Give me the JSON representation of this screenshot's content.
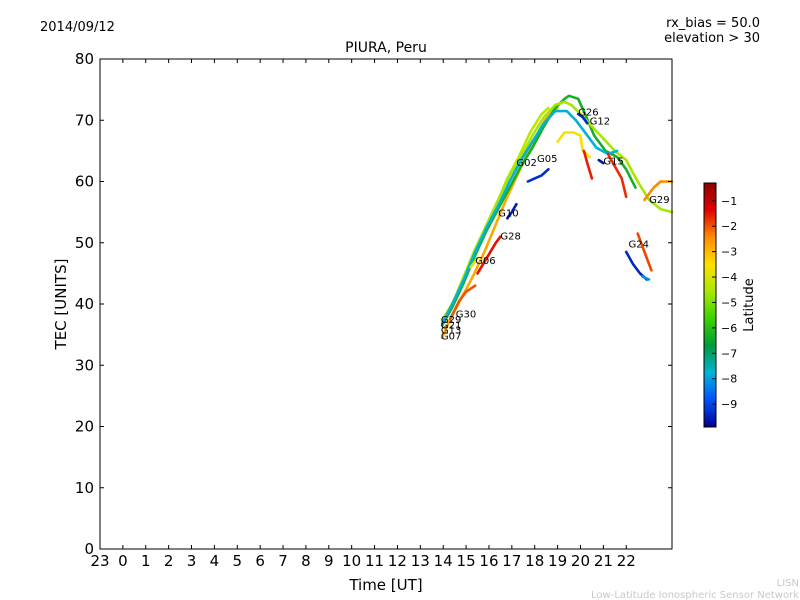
{
  "header": {
    "date": "2014/09/12",
    "rx_bias": "rx_bias = 50.0",
    "elevation": "elevation > 30"
  },
  "footer": {
    "credit_short": "LISN",
    "credit_long": "Low-Latitude Ionospheric Sensor Network"
  },
  "colorbar": {
    "label": "Latitude",
    "ticks": [
      -1,
      -2,
      -3,
      -4,
      -5,
      -6,
      -7,
      -8,
      -9
    ],
    "range": [
      -9.9,
      -0.3
    ],
    "colors": [
      "#00008f",
      "#0050ff",
      "#00b4d8",
      "#009b3a",
      "#3cd200",
      "#a8e800",
      "#ffe000",
      "#ff8c00",
      "#e00000",
      "#8f0000"
    ]
  },
  "chart_data": {
    "type": "line",
    "title": "PIURA, Peru",
    "xlabel": "Time [UT]",
    "ylabel": "TEC [UNITS]",
    "xlim": [
      -1,
      24
    ],
    "ylim": [
      0,
      80
    ],
    "x_ticks": [
      -1,
      0,
      1,
      2,
      3,
      4,
      5,
      6,
      7,
      8,
      9,
      10,
      11,
      12,
      13,
      14,
      15,
      16,
      17,
      18,
      19,
      20,
      21,
      22
    ],
    "x_tick_labels": [
      "23",
      "0",
      "1",
      "2",
      "3",
      "4",
      "5",
      "6",
      "7",
      "8",
      "9",
      "10",
      "11",
      "12",
      "13",
      "14",
      "15",
      "16",
      "17",
      "18",
      "19",
      "20",
      "21",
      "22"
    ],
    "y_ticks": [
      0,
      10,
      20,
      30,
      40,
      50,
      60,
      70,
      80
    ],
    "grid": false,
    "series": [
      {
        "name": "G07",
        "lat": -2.8,
        "label_at": [
          13.9,
          34.2
        ],
        "points": [
          [
            13.95,
            34.5
          ],
          [
            14.3,
            37.5
          ],
          [
            14.8,
            41
          ],
          [
            15.3,
            44.5
          ],
          [
            15.8,
            48.5
          ],
          [
            16.3,
            53
          ],
          [
            16.8,
            57.5
          ],
          [
            17.3,
            61.5
          ],
          [
            17.8,
            65.5
          ],
          [
            18.3,
            69
          ],
          [
            18.7,
            71.5
          ],
          [
            19.0,
            72
          ]
        ]
      },
      {
        "name": "G30",
        "lat": -4.3,
        "label_at": [
          14.55,
          37.8
        ],
        "points": [
          [
            13.95,
            37.3
          ],
          [
            14.3,
            39.5
          ],
          [
            14.8,
            43
          ],
          [
            15.3,
            47
          ],
          [
            15.8,
            51.5
          ],
          [
            16.3,
            56
          ],
          [
            16.8,
            60.5
          ],
          [
            17.3,
            64
          ],
          [
            17.8,
            68
          ],
          [
            18.3,
            71
          ],
          [
            18.6,
            72
          ]
        ]
      },
      {
        "name": "G30",
        "lat": -2.0,
        "label_at": [
          14.55,
          37.8
        ],
        "points": [
          [
            14.3,
            37.5
          ],
          [
            14.7,
            40.5
          ],
          [
            15.0,
            42
          ],
          [
            15.4,
            43
          ]
        ]
      },
      {
        "name": "G02",
        "lat": -6.3,
        "label_at": [
          17.2,
          62.5
        ],
        "points": [
          [
            13.95,
            36.5
          ],
          [
            14.4,
            39.5
          ],
          [
            14.9,
            43.5
          ],
          [
            15.4,
            48
          ],
          [
            15.9,
            52
          ],
          [
            16.4,
            55.5
          ],
          [
            16.9,
            59
          ],
          [
            17.4,
            62.5
          ],
          [
            17.9,
            65.5
          ],
          [
            18.4,
            69
          ],
          [
            18.9,
            72
          ],
          [
            19.3,
            73.5
          ],
          [
            19.5,
            74
          ],
          [
            19.9,
            73.5
          ],
          [
            20.2,
            71
          ],
          [
            20.6,
            67.5
          ],
          [
            21.1,
            65
          ],
          [
            21.6,
            64
          ],
          [
            22.0,
            62
          ],
          [
            22.4,
            59
          ]
        ]
      },
      {
        "name": "G05",
        "lat": -4.6,
        "label_at": [
          18.1,
          63.2
        ],
        "points": [
          [
            14.4,
            40
          ],
          [
            14.9,
            44.5
          ],
          [
            15.4,
            49
          ],
          [
            15.9,
            53
          ],
          [
            16.4,
            57
          ],
          [
            16.9,
            61
          ],
          [
            17.4,
            64
          ],
          [
            17.9,
            67.5
          ],
          [
            18.4,
            70.5
          ],
          [
            18.9,
            72.5
          ],
          [
            19.3,
            73
          ],
          [
            19.6,
            72.5
          ],
          [
            20.0,
            71
          ],
          [
            20.5,
            69
          ],
          [
            21.0,
            67
          ],
          [
            21.5,
            65
          ],
          [
            22.0,
            63.5
          ],
          [
            22.5,
            60
          ],
          [
            23.0,
            57
          ],
          [
            23.5,
            55.5
          ],
          [
            24.0,
            55
          ]
        ]
      },
      {
        "name": "G26",
        "lat": -7.8,
        "label_at": [
          19.9,
          70.8
        ],
        "points": [
          [
            13.95,
            36.8
          ],
          [
            14.4,
            40
          ],
          [
            14.9,
            44
          ],
          [
            15.4,
            48.5
          ],
          [
            15.9,
            52.5
          ],
          [
            16.4,
            56
          ],
          [
            16.9,
            60
          ],
          [
            17.4,
            63.5
          ],
          [
            17.9,
            66.5
          ],
          [
            18.4,
            69.5
          ],
          [
            18.9,
            71.5
          ],
          [
            19.4,
            71.5
          ],
          [
            19.8,
            70
          ],
          [
            20.2,
            68
          ],
          [
            20.7,
            65.5
          ],
          [
            21.2,
            64.5
          ],
          [
            21.6,
            65
          ]
        ]
      },
      {
        "name": "G26",
        "lat": -9.4,
        "label_at": [
          19.9,
          70.8
        ],
        "points": [
          [
            19.9,
            71
          ],
          [
            20.1,
            70.5
          ],
          [
            20.3,
            69.5
          ]
        ]
      },
      {
        "name": "G12",
        "lat": -3.6,
        "label_at": [
          20.4,
          69.3
        ],
        "points": [
          [
            19.0,
            66.5
          ],
          [
            19.3,
            68
          ],
          [
            19.7,
            68
          ],
          [
            20.0,
            67.5
          ],
          [
            20.1,
            65
          ],
          [
            20.4,
            64
          ]
        ]
      },
      {
        "name": "G12",
        "lat": -1.6,
        "label_at": [
          20.4,
          69.3
        ],
        "points": [
          [
            20.15,
            65
          ],
          [
            20.3,
            63
          ],
          [
            20.5,
            60.5
          ]
        ]
      },
      {
        "name": "G15",
        "lat": -1.7,
        "label_at": [
          21.0,
          62.8
        ],
        "points": [
          [
            21.2,
            64.5
          ],
          [
            21.5,
            62.5
          ],
          [
            21.8,
            60.5
          ],
          [
            22.0,
            57.5
          ]
        ]
      },
      {
        "name": "G15",
        "lat": -9.6,
        "label_at": [
          21.0,
          62.8
        ],
        "points": [
          [
            20.8,
            63.5
          ],
          [
            21.0,
            63
          ]
        ]
      },
      {
        "name": "G10",
        "lat": -9.3,
        "label_at": [
          16.4,
          54.3
        ],
        "points": [
          [
            17.7,
            60
          ],
          [
            18.0,
            60.5
          ],
          [
            18.3,
            61
          ],
          [
            18.6,
            62
          ]
        ]
      },
      {
        "name": "G10",
        "lat": -9.5,
        "label_at": [
          16.4,
          54.3
        ],
        "points": [
          [
            16.8,
            54
          ],
          [
            17.0,
            55
          ],
          [
            17.2,
            56.3
          ]
        ]
      },
      {
        "name": "G28",
        "lat": -1.5,
        "label_at": [
          16.5,
          50.5
        ],
        "points": [
          [
            15.5,
            45
          ],
          [
            15.9,
            47.5
          ],
          [
            16.3,
            50
          ],
          [
            16.5,
            51
          ]
        ]
      },
      {
        "name": "G06",
        "lat": -3.8,
        "label_at": [
          15.4,
          46.5
        ],
        "points": [
          [
            15.2,
            46
          ],
          [
            15.5,
            47.5
          ]
        ]
      },
      {
        "name": "G29",
        "lat": -2.4,
        "label_at": [
          23.0,
          56.5
        ],
        "points": [
          [
            22.8,
            57
          ],
          [
            23.2,
            59
          ],
          [
            23.5,
            60
          ],
          [
            24.0,
            60
          ]
        ]
      },
      {
        "name": "G24",
        "lat": -9.4,
        "label_at": [
          22.1,
          49.2
        ],
        "points": [
          [
            22.0,
            48.5
          ],
          [
            22.3,
            46.5
          ],
          [
            22.6,
            45
          ],
          [
            22.9,
            44
          ]
        ]
      },
      {
        "name": "G24",
        "lat": -8.1,
        "label_at": [
          22.1,
          49.2
        ],
        "points": [
          [
            22.7,
            44.5
          ],
          [
            23.0,
            44
          ]
        ]
      },
      {
        "name": "G24",
        "lat": -1.9,
        "label_at": [
          22.1,
          49.2
        ],
        "points": [
          [
            22.5,
            51.5
          ],
          [
            22.8,
            48.5
          ],
          [
            23.0,
            46.5
          ],
          [
            23.1,
            45.5
          ]
        ]
      }
    ],
    "point_labels": [
      {
        "text": "G07",
        "x": 13.9,
        "y": 34.2
      },
      {
        "text": "G13",
        "x": 13.9,
        "y": 35.2
      },
      {
        "text": "G21",
        "x": 13.9,
        "y": 36.0
      },
      {
        "text": "G29",
        "x": 13.9,
        "y": 36.9
      },
      {
        "text": "G30",
        "x": 14.55,
        "y": 37.8
      },
      {
        "text": "G06",
        "x": 15.4,
        "y": 46.5
      },
      {
        "text": "G28",
        "x": 16.5,
        "y": 50.5
      },
      {
        "text": "G10",
        "x": 16.4,
        "y": 54.3
      },
      {
        "text": "G02",
        "x": 17.2,
        "y": 62.5
      },
      {
        "text": "G05",
        "x": 18.1,
        "y": 63.2
      },
      {
        "text": "G26",
        "x": 19.9,
        "y": 70.8
      },
      {
        "text": "G12",
        "x": 20.4,
        "y": 69.3
      },
      {
        "text": "G15",
        "x": 21.0,
        "y": 62.8
      },
      {
        "text": "G29",
        "x": 23.0,
        "y": 56.5
      },
      {
        "text": "G24",
        "x": 22.1,
        "y": 49.2
      }
    ]
  }
}
